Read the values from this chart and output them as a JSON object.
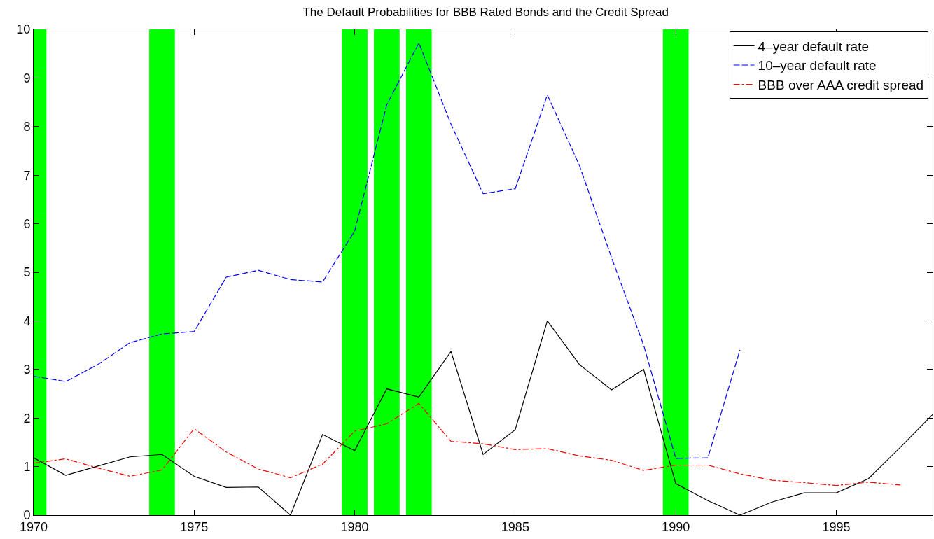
{
  "chart_data": {
    "type": "line",
    "title": "The Default Probabilities for BBB Rated Bonds and the Credit Spread",
    "x": [
      1970,
      1971,
      1972,
      1973,
      1974,
      1975,
      1976,
      1977,
      1978,
      1979,
      1980,
      1981,
      1982,
      1983,
      1984,
      1985,
      1986,
      1987,
      1988,
      1989,
      1990,
      1991,
      1992,
      1993,
      1994,
      1995,
      1996,
      1997,
      1998
    ],
    "series": [
      {
        "name": "4–year default rate",
        "color": "#000000",
        "line_style": "solid",
        "values": [
          1.18,
          0.82,
          1.01,
          1.2,
          1.25,
          0.8,
          0.57,
          0.58,
          0,
          1.66,
          1.33,
          2.6,
          2.43,
          3.37,
          1.25,
          1.76,
          4.0,
          3.1,
          2.58,
          3.0,
          0.65,
          0.3,
          0,
          0.27,
          0.46,
          0.46,
          0.75,
          1.4,
          2.07
        ]
      },
      {
        "name": "10–year default rate",
        "color": "#0000ff",
        "line_style": "dashed",
        "values": [
          2.86,
          2.75,
          3.1,
          3.55,
          3.73,
          3.78,
          4.9,
          5.04,
          4.85,
          4.8,
          5.85,
          8.45,
          9.72,
          8.05,
          6.62,
          6.72,
          8.65,
          7.2,
          5.3,
          3.5,
          1.17,
          1.18,
          3.4,
          null,
          null,
          null,
          null,
          null,
          null
        ]
      },
      {
        "name": "BBB over AAA credit spread",
        "color": "#ff0000",
        "line_style": "dashdot",
        "values": [
          1.07,
          1.16,
          0.97,
          0.8,
          0.93,
          1.78,
          1.3,
          0.95,
          0.77,
          1.05,
          1.73,
          1.88,
          2.3,
          1.52,
          1.47,
          1.35,
          1.37,
          1.22,
          1.13,
          0.92,
          1.03,
          1.03,
          0.85,
          0.72,
          0.67,
          0.61,
          0.68,
          0.62,
          null
        ]
      }
    ],
    "bands": [
      {
        "axis": "x",
        "from": 1970,
        "to": 1970.4,
        "color": "#00ff00"
      },
      {
        "axis": "x",
        "from": 1973.6,
        "to": 1974.4,
        "color": "#00ff00"
      },
      {
        "axis": "x",
        "from": 1979.6,
        "to": 1980.4,
        "color": "#00ff00"
      },
      {
        "axis": "x",
        "from": 1980.6,
        "to": 1981.4,
        "color": "#00ff00"
      },
      {
        "axis": "x",
        "from": 1981.6,
        "to": 1982.4,
        "color": "#00ff00"
      },
      {
        "axis": "x",
        "from": 1989.6,
        "to": 1990.4,
        "color": "#00ff00"
      }
    ],
    "xlim": [
      1970,
      1998
    ],
    "xticks": [
      1970,
      1975,
      1980,
      1985,
      1990,
      1995
    ],
    "ylim": [
      0,
      10
    ],
    "yticks": [
      0,
      1,
      2,
      3,
      4,
      5,
      6,
      7,
      8,
      9,
      10
    ],
    "grid": false,
    "legend": "top right",
    "marker": "none"
  }
}
